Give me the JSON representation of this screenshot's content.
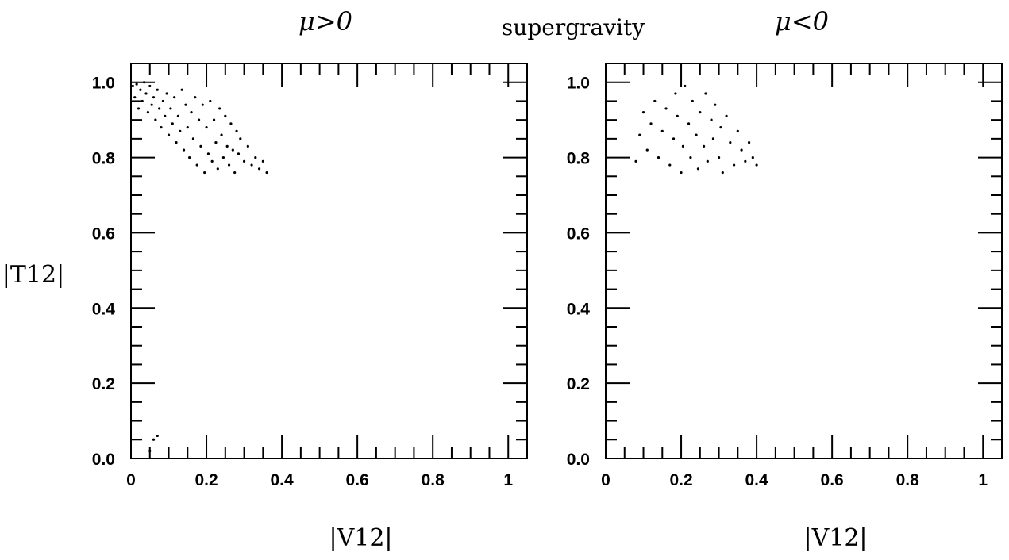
{
  "figure": {
    "center_title": "supergravity",
    "xlabel": "|V12|",
    "ylabel": "|T12|",
    "color": "#000000"
  },
  "chart_data": [
    {
      "type": "scatter",
      "title": "μ>0",
      "xlim": [
        0,
        1.05
      ],
      "ylim": [
        0,
        1.05
      ],
      "xticks": [
        0,
        0.2,
        0.4,
        0.6,
        0.8,
        1
      ],
      "xtick_labels": [
        "0",
        "0.2",
        "0.4",
        "0.6",
        "0.8",
        "1"
      ],
      "yticks": [
        0,
        0.2,
        0.4,
        0.6,
        0.8,
        1.0
      ],
      "ytick_labels": [
        "0.0",
        "0.2",
        "0.4",
        "0.6",
        "0.8",
        "1.0"
      ],
      "grid": false,
      "points": [
        [
          0.005,
          0.99
        ],
        [
          0.01,
          0.96
        ],
        [
          0.015,
          0.995
        ],
        [
          0.02,
          0.93
        ],
        [
          0.025,
          0.98
        ],
        [
          0.03,
          0.95
        ],
        [
          0.035,
          1.0
        ],
        [
          0.04,
          0.97
        ],
        [
          0.045,
          0.92
        ],
        [
          0.05,
          0.99
        ],
        [
          0.055,
          0.94
        ],
        [
          0.06,
          0.96
        ],
        [
          0.065,
          0.9
        ],
        [
          0.07,
          0.98
        ],
        [
          0.075,
          0.93
        ],
        [
          0.08,
          0.88
        ],
        [
          0.085,
          0.95
        ],
        [
          0.09,
          0.91
        ],
        [
          0.095,
          0.97
        ],
        [
          0.1,
          0.86
        ],
        [
          0.105,
          0.93
        ],
        [
          0.11,
          0.89
        ],
        [
          0.115,
          0.96
        ],
        [
          0.12,
          0.84
        ],
        [
          0.125,
          0.91
        ],
        [
          0.13,
          0.87
        ],
        [
          0.135,
          0.98
        ],
        [
          0.14,
          0.82
        ],
        [
          0.145,
          0.94
        ],
        [
          0.15,
          0.88
        ],
        [
          0.155,
          0.8
        ],
        [
          0.16,
          0.92
        ],
        [
          0.165,
          0.85
        ],
        [
          0.17,
          0.96
        ],
        [
          0.175,
          0.78
        ],
        [
          0.18,
          0.9
        ],
        [
          0.185,
          0.83
        ],
        [
          0.19,
          0.94
        ],
        [
          0.195,
          0.76
        ],
        [
          0.2,
          0.88
        ],
        [
          0.205,
          0.81
        ],
        [
          0.21,
          0.95
        ],
        [
          0.215,
          0.79
        ],
        [
          0.22,
          0.9
        ],
        [
          0.225,
          0.84
        ],
        [
          0.23,
          0.77
        ],
        [
          0.235,
          0.93
        ],
        [
          0.24,
          0.86
        ],
        [
          0.245,
          0.8
        ],
        [
          0.25,
          0.91
        ],
        [
          0.255,
          0.83
        ],
        [
          0.26,
          0.78
        ],
        [
          0.265,
          0.89
        ],
        [
          0.27,
          0.82
        ],
        [
          0.275,
          0.76
        ],
        [
          0.28,
          0.87
        ],
        [
          0.285,
          0.81
        ],
        [
          0.29,
          0.85
        ],
        [
          0.3,
          0.79
        ],
        [
          0.31,
          0.83
        ],
        [
          0.32,
          0.78
        ],
        [
          0.33,
          0.8
        ],
        [
          0.34,
          0.77
        ],
        [
          0.35,
          0.79
        ],
        [
          0.36,
          0.76
        ],
        [
          0.05,
          0.02
        ],
        [
          0.06,
          0.05
        ],
        [
          0.07,
          0.06
        ]
      ]
    },
    {
      "type": "scatter",
      "title": "μ<0",
      "xlim": [
        0,
        1.05
      ],
      "ylim": [
        0,
        1.05
      ],
      "xticks": [
        0,
        0.2,
        0.4,
        0.6,
        0.8,
        1
      ],
      "xtick_labels": [
        "0",
        "0.2",
        "0.4",
        "0.6",
        "0.8",
        "1"
      ],
      "yticks": [
        0,
        0.2,
        0.4,
        0.6,
        0.8,
        1.0
      ],
      "ytick_labels": [
        "0.0",
        "0.2",
        "0.4",
        "0.6",
        "0.8",
        "1.0"
      ],
      "grid": false,
      "points": [
        [
          0.08,
          0.79
        ],
        [
          0.09,
          0.86
        ],
        [
          0.1,
          0.92
        ],
        [
          0.11,
          0.82
        ],
        [
          0.12,
          0.89
        ],
        [
          0.13,
          0.95
        ],
        [
          0.14,
          0.8
        ],
        [
          0.15,
          0.87
        ],
        [
          0.16,
          0.93
        ],
        [
          0.17,
          0.78
        ],
        [
          0.18,
          0.85
        ],
        [
          0.185,
          0.97
        ],
        [
          0.19,
          0.91
        ],
        [
          0.2,
          0.76
        ],
        [
          0.205,
          0.83
        ],
        [
          0.21,
          0.99
        ],
        [
          0.22,
          0.89
        ],
        [
          0.225,
          0.8
        ],
        [
          0.23,
          0.95
        ],
        [
          0.24,
          0.86
        ],
        [
          0.245,
          0.77
        ],
        [
          0.25,
          0.92
        ],
        [
          0.26,
          0.83
        ],
        [
          0.265,
          0.97
        ],
        [
          0.27,
          0.79
        ],
        [
          0.28,
          0.9
        ],
        [
          0.285,
          0.85
        ],
        [
          0.29,
          0.94
        ],
        [
          0.3,
          0.8
        ],
        [
          0.305,
          0.88
        ],
        [
          0.31,
          0.76
        ],
        [
          0.32,
          0.91
        ],
        [
          0.33,
          0.84
        ],
        [
          0.34,
          0.78
        ],
        [
          0.35,
          0.87
        ],
        [
          0.36,
          0.82
        ],
        [
          0.37,
          0.79
        ],
        [
          0.38,
          0.84
        ],
        [
          0.39,
          0.8
        ],
        [
          0.4,
          0.78
        ]
      ]
    }
  ]
}
